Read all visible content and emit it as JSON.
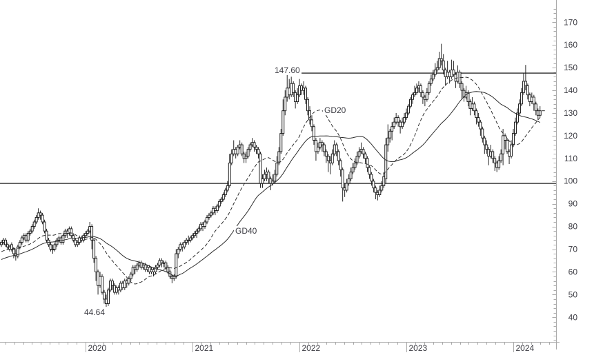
{
  "chart_data": {
    "type": "candlestick",
    "timeframe": "weekly",
    "title": "",
    "xlabel": "",
    "ylabel": "",
    "grid": false,
    "legend_position": "inline-labels",
    "y_axis": {
      "min": 40,
      "max": 170,
      "tick_step": 10,
      "minor_step": 2,
      "tick_labels": [
        "40",
        "50",
        "60",
        "70",
        "80",
        "90",
        "100",
        "110",
        "120",
        "130",
        "140",
        "150",
        "160",
        "170"
      ]
    },
    "x_axis": {
      "year_labels": [
        "2020",
        "2021",
        "2022",
        "2023",
        "2024"
      ],
      "year_week_index": [
        41,
        93,
        145,
        197,
        248
      ],
      "minor_tick": "monthly"
    },
    "levels": [
      {
        "label": "147.60",
        "value": 147.6,
        "from_week": 146,
        "role": "resistance"
      },
      {
        "label": "",
        "value": 99.0,
        "from_week": 0,
        "role": "support"
      }
    ],
    "annotations": {
      "low": {
        "text": "44.64",
        "value": 44.64,
        "week": 51
      }
    },
    "indicators": [
      {
        "label": "GD20",
        "period": 20,
        "line_style": "dashed"
      },
      {
        "label": "GD40",
        "period": 40,
        "line_style": "solid"
      }
    ],
    "ma_warmup_closes": [
      58,
      58,
      59,
      59,
      60,
      60,
      60,
      61,
      61,
      62,
      62,
      62,
      63,
      63,
      63,
      64,
      64,
      64,
      65,
      65,
      65,
      66,
      66,
      66,
      67,
      67,
      67,
      68,
      68,
      68,
      69,
      69,
      69,
      70,
      70,
      70,
      71,
      71,
      71,
      72
    ],
    "candles": [
      [
        72,
        74,
        71,
        73
      ],
      [
        73,
        75,
        72,
        74
      ],
      [
        74,
        75,
        71,
        72
      ],
      [
        72,
        73,
        70,
        71
      ],
      [
        71,
        72,
        69,
        70
      ],
      [
        70,
        73,
        69,
        72
      ],
      [
        70,
        71,
        66,
        68
      ],
      [
        68,
        70,
        65,
        67
      ],
      [
        67,
        72,
        66,
        71
      ],
      [
        71,
        74,
        70,
        73
      ],
      [
        73,
        76,
        72,
        75
      ],
      [
        75,
        77,
        74,
        76
      ],
      [
        76,
        77,
        73,
        74
      ],
      [
        74,
        78,
        73,
        77
      ],
      [
        77,
        79,
        76,
        78
      ],
      [
        78,
        81,
        77,
        80
      ],
      [
        80,
        83,
        79,
        82
      ],
      [
        82,
        85,
        81,
        84
      ],
      [
        84,
        88,
        83,
        86
      ],
      [
        86,
        87,
        83,
        85
      ],
      [
        85,
        86,
        81,
        82
      ],
      [
        82,
        83,
        77,
        78
      ],
      [
        78,
        79,
        73,
        74
      ],
      [
        74,
        75,
        71,
        72
      ],
      [
        72,
        73,
        69,
        70
      ],
      [
        70,
        72,
        68,
        70
      ],
      [
        70,
        73,
        69,
        72
      ],
      [
        72,
        75,
        71,
        74
      ],
      [
        74,
        76,
        73,
        75
      ],
      [
        75,
        76,
        72,
        73
      ],
      [
        73,
        77,
        72,
        76
      ],
      [
        76,
        79,
        75,
        78
      ],
      [
        78,
        79,
        75,
        77
      ],
      [
        77,
        80,
        76,
        79
      ],
      [
        79,
        80,
        75,
        76
      ],
      [
        76,
        77,
        73,
        74
      ],
      [
        74,
        75,
        71,
        72
      ],
      [
        72,
        74,
        71,
        73
      ],
      [
        73,
        76,
        72,
        75
      ],
      [
        75,
        76,
        73,
        74
      ],
      [
        74,
        77,
        73,
        76
      ],
      [
        76,
        78,
        75,
        77
      ],
      [
        77,
        79,
        76,
        78
      ],
      [
        78,
        82,
        77,
        80
      ],
      [
        80,
        81,
        70,
        74
      ],
      [
        74,
        75,
        64,
        66
      ],
      [
        66,
        67,
        56,
        60
      ],
      [
        60,
        61,
        50,
        54
      ],
      [
        54,
        60,
        53,
        58
      ],
      [
        58,
        59,
        50,
        51
      ],
      [
        51,
        52,
        46,
        48
      ],
      [
        48,
        50,
        44.64,
        46
      ],
      [
        46,
        53,
        45,
        52
      ],
      [
        52,
        57,
        51,
        56
      ],
      [
        56,
        57,
        52,
        54
      ],
      [
        54,
        55,
        50,
        51
      ],
      [
        51,
        54,
        50,
        53
      ],
      [
        53,
        54,
        50,
        52
      ],
      [
        52,
        56,
        51,
        55
      ],
      [
        55,
        56,
        52,
        53
      ],
      [
        53,
        57,
        52,
        56
      ],
      [
        56,
        57,
        53,
        55
      ],
      [
        55,
        58,
        54,
        57
      ],
      [
        57,
        60,
        56,
        59
      ],
      [
        59,
        63,
        58,
        62
      ],
      [
        62,
        63,
        59,
        61
      ],
      [
        61,
        64,
        60,
        63
      ],
      [
        63,
        65,
        62,
        64
      ],
      [
        64,
        65,
        61,
        62
      ],
      [
        62,
        64,
        61,
        63
      ],
      [
        63,
        64,
        60,
        61
      ],
      [
        61,
        63,
        60,
        62
      ],
      [
        62,
        63,
        59,
        60
      ],
      [
        60,
        62,
        59,
        61
      ],
      [
        61,
        62,
        58,
        60
      ],
      [
        60,
        63,
        59,
        62
      ],
      [
        62,
        64,
        61,
        63
      ],
      [
        63,
        66,
        62,
        65
      ],
      [
        65,
        66,
        62,
        64
      ],
      [
        64,
        65,
        62,
        64
      ],
      [
        64,
        65,
        61,
        62
      ],
      [
        62,
        63,
        59,
        60
      ],
      [
        60,
        61,
        57,
        58
      ],
      [
        58,
        59,
        55,
        57
      ],
      [
        57,
        59,
        56,
        58
      ],
      [
        58,
        70,
        57,
        68
      ],
      [
        68,
        71,
        66,
        70
      ],
      [
        70,
        73,
        69,
        72
      ],
      [
        72,
        73,
        69,
        71
      ],
      [
        71,
        74,
        70,
        73
      ],
      [
        73,
        75,
        72,
        74
      ],
      [
        74,
        76,
        72,
        74
      ],
      [
        74,
        76,
        73,
        75
      ],
      [
        75,
        77,
        74,
        76
      ],
      [
        76,
        78,
        75,
        77
      ],
      [
        77,
        79,
        75,
        78
      ],
      [
        78,
        80,
        77,
        79
      ],
      [
        79,
        82,
        78,
        81
      ],
      [
        81,
        82,
        78,
        80
      ],
      [
        80,
        83,
        79,
        82
      ],
      [
        82,
        85,
        81,
        84
      ],
      [
        84,
        86,
        83,
        85
      ],
      [
        85,
        87,
        84,
        86
      ],
      [
        86,
        89,
        85,
        88
      ],
      [
        88,
        89,
        85,
        87
      ],
      [
        87,
        90,
        86,
        89
      ],
      [
        89,
        92,
        88,
        91
      ],
      [
        91,
        93,
        90,
        92
      ],
      [
        92,
        95,
        91,
        94
      ],
      [
        94,
        97,
        93,
        96
      ],
      [
        96,
        100,
        95,
        98
      ],
      [
        98,
        112,
        97,
        108
      ],
      [
        108,
        114,
        107,
        112
      ],
      [
        112,
        118,
        111,
        114
      ],
      [
        114,
        115,
        110,
        112
      ],
      [
        112,
        116,
        111,
        115
      ],
      [
        115,
        118,
        114,
        116
      ],
      [
        116,
        117,
        111,
        112
      ],
      [
        112,
        113,
        108,
        110
      ],
      [
        110,
        113,
        108,
        111
      ],
      [
        111,
        115,
        110,
        114
      ],
      [
        114,
        117,
        113,
        116
      ],
      [
        116,
        119,
        115,
        117
      ],
      [
        117,
        118,
        113,
        115
      ],
      [
        115,
        116,
        112,
        114
      ],
      [
        114,
        115,
        110,
        112
      ],
      [
        112,
        113,
        97,
        99
      ],
      [
        99,
        103,
        97,
        101
      ],
      [
        101,
        105,
        100,
        103
      ],
      [
        103,
        106,
        100,
        104
      ],
      [
        104,
        105,
        99,
        101
      ],
      [
        101,
        102,
        96,
        99
      ],
      [
        99,
        103,
        98,
        100
      ],
      [
        100,
        105,
        99,
        103
      ],
      [
        103,
        111,
        102,
        108
      ],
      [
        108,
        115,
        107,
        113
      ],
      [
        113,
        123,
        112,
        121
      ],
      [
        121,
        136,
        120,
        131
      ],
      [
        131,
        140,
        129,
        137
      ],
      [
        137,
        147.6,
        135,
        141
      ],
      [
        141,
        145,
        136,
        138
      ],
      [
        138,
        146,
        137,
        143
      ],
      [
        143,
        144,
        137,
        139
      ],
      [
        139,
        140,
        132,
        135
      ],
      [
        135,
        141,
        134,
        138
      ],
      [
        138,
        145,
        137,
        142
      ],
      [
        142,
        143,
        138,
        140
      ],
      [
        140,
        144,
        138,
        141
      ],
      [
        141,
        142,
        134,
        136
      ],
      [
        136,
        137,
        129,
        131
      ],
      [
        131,
        133,
        125,
        127
      ],
      [
        127,
        129,
        122,
        124
      ],
      [
        124,
        125,
        116,
        118
      ],
      [
        118,
        119,
        109,
        113
      ],
      [
        113,
        117,
        112,
        115
      ],
      [
        115,
        119,
        114,
        117
      ],
      [
        117,
        118,
        113,
        116
      ],
      [
        116,
        117,
        111,
        113
      ],
      [
        113,
        114,
        108,
        111
      ],
      [
        111,
        112,
        104,
        109
      ],
      [
        109,
        111,
        103,
        108
      ],
      [
        108,
        114,
        107,
        112
      ],
      [
        112,
        118,
        111,
        116
      ],
      [
        116,
        117,
        111,
        113
      ],
      [
        113,
        114,
        107,
        109
      ],
      [
        109,
        110,
        102,
        105
      ],
      [
        105,
        106,
        91,
        97
      ],
      [
        97,
        99,
        93,
        96
      ],
      [
        96,
        101,
        95,
        99
      ],
      [
        99,
        103,
        98,
        101
      ],
      [
        101,
        106,
        100,
        104
      ],
      [
        104,
        108,
        103,
        106
      ],
      [
        106,
        110,
        105,
        108
      ],
      [
        108,
        113,
        107,
        111
      ],
      [
        111,
        115,
        110,
        113
      ],
      [
        113,
        117,
        112,
        114
      ],
      [
        114,
        115,
        110,
        112
      ],
      [
        112,
        113,
        108,
        110
      ],
      [
        110,
        111,
        104,
        106
      ],
      [
        106,
        107,
        101,
        103
      ],
      [
        103,
        104,
        98,
        100
      ],
      [
        100,
        101,
        95,
        97
      ],
      [
        97,
        98,
        92,
        95
      ],
      [
        95,
        96,
        91.5,
        94
      ],
      [
        94,
        98,
        93,
        96
      ],
      [
        96,
        100,
        95,
        98
      ],
      [
        98,
        104,
        97,
        102
      ],
      [
        101,
        119,
        99,
        116
      ],
      [
        116,
        125,
        113,
        119
      ],
      [
        119,
        123,
        117,
        122
      ],
      [
        122,
        126,
        118,
        124
      ],
      [
        124,
        128,
        123,
        126
      ],
      [
        126,
        130,
        125,
        128
      ],
      [
        128,
        129,
        124,
        126
      ],
      [
        126,
        127,
        121,
        124
      ],
      [
        124,
        128,
        123,
        126
      ],
      [
        126,
        130,
        125,
        128
      ],
      [
        128,
        132,
        127,
        130
      ],
      [
        130,
        134,
        129,
        133
      ],
      [
        133,
        137,
        132,
        136
      ],
      [
        136,
        139,
        134,
        138
      ],
      [
        138,
        142,
        137,
        139
      ],
      [
        139,
        143,
        138,
        141
      ],
      [
        141,
        144,
        139,
        142
      ],
      [
        142,
        143,
        137,
        139
      ],
      [
        139,
        140,
        134,
        137
      ],
      [
        137,
        138,
        133,
        136
      ],
      [
        136,
        141,
        135,
        139
      ],
      [
        139,
        144,
        138,
        143
      ],
      [
        143,
        147,
        142,
        145
      ],
      [
        145,
        149,
        144,
        147
      ],
      [
        147,
        152,
        146,
        149
      ],
      [
        149,
        153,
        148,
        150
      ],
      [
        150,
        157,
        149,
        154
      ],
      [
        154,
        160.5,
        151,
        153
      ],
      [
        153,
        156,
        147,
        149
      ],
      [
        149,
        150,
        142,
        146
      ],
      [
        146,
        153,
        145,
        148
      ],
      [
        148,
        149,
        143,
        146
      ],
      [
        146,
        153.5,
        145,
        149
      ],
      [
        149,
        153,
        146,
        147
      ],
      [
        147,
        148,
        141,
        144
      ],
      [
        144,
        151,
        143,
        148
      ],
      [
        148,
        149,
        141,
        143
      ],
      [
        143,
        144,
        136,
        140
      ],
      [
        140,
        141,
        135,
        137
      ],
      [
        137,
        142,
        136,
        139
      ],
      [
        139,
        140,
        133,
        135
      ],
      [
        135,
        136,
        129,
        132
      ],
      [
        132,
        137,
        131,
        134
      ],
      [
        134,
        135,
        129,
        131
      ],
      [
        131,
        132,
        125,
        128
      ],
      [
        128,
        130,
        124,
        126
      ],
      [
        126,
        127,
        120,
        123
      ],
      [
        123,
        124,
        117,
        119
      ],
      [
        119,
        120,
        112,
        116
      ],
      [
        116,
        118,
        112,
        114
      ],
      [
        114,
        115,
        107,
        111
      ],
      [
        111,
        116,
        110,
        113
      ],
      [
        113,
        114,
        108,
        110
      ],
      [
        110,
        111,
        104.5,
        108
      ],
      [
        108,
        109,
        104,
        106
      ],
      [
        106,
        111,
        105,
        109
      ],
      [
        109,
        114,
        108,
        112
      ],
      [
        112,
        123,
        107,
        120
      ],
      [
        120,
        121,
        114,
        118
      ],
      [
        118,
        119,
        112,
        113
      ],
      [
        113,
        114,
        107.5,
        111
      ],
      [
        111,
        118,
        110,
        116
      ],
      [
        116,
        123,
        115,
        121
      ],
      [
        121,
        128,
        120,
        126
      ],
      [
        126,
        132,
        125,
        130
      ],
      [
        130,
        136,
        129,
        134
      ],
      [
        134,
        141,
        133,
        139
      ],
      [
        139,
        147.5,
        138,
        144
      ],
      [
        144,
        151.2,
        140,
        142
      ],
      [
        142,
        143,
        136,
        138
      ],
      [
        138,
        139,
        133,
        135
      ],
      [
        135,
        139,
        134,
        137
      ],
      [
        137,
        138,
        131,
        134
      ],
      [
        134,
        135,
        129,
        131
      ],
      [
        131,
        132,
        127,
        129
      ],
      [
        129,
        133,
        128,
        131
      ]
    ],
    "colors": {
      "background": "#ffffff",
      "candle": "#1b1b1b",
      "candle_fill": "#ffffff",
      "ma": "#2d2d2d",
      "level_line": "#2a2a2a",
      "axis": "#aaaaaa",
      "tick_text": "#3b3b42"
    }
  }
}
